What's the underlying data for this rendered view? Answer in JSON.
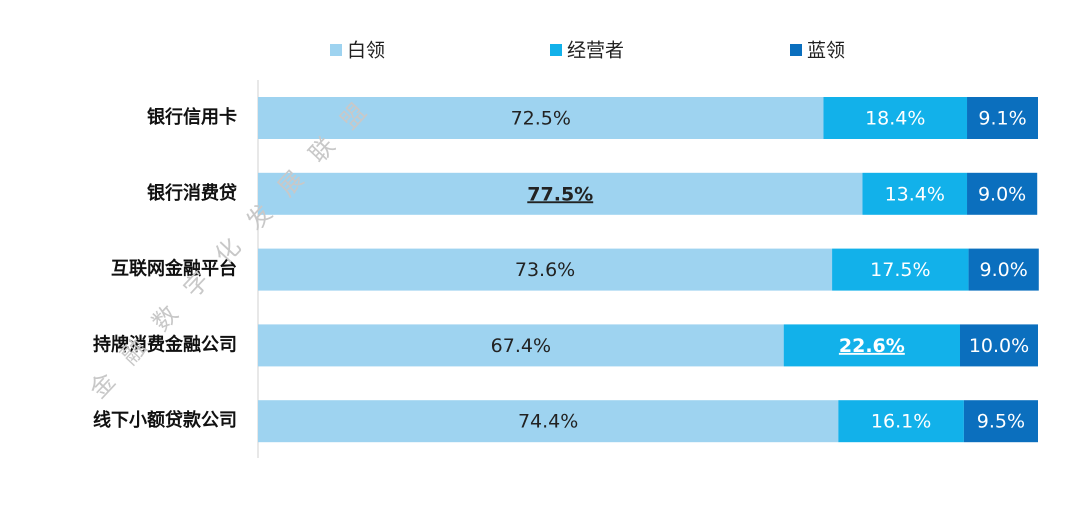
{
  "chart_data": {
    "type": "stacked_barh",
    "categories": [
      "银行信用卡",
      "银行消费贷",
      "互联网金融平台",
      "持牌消费金融公司",
      "线下小额贷款公司"
    ],
    "series": [
      {
        "name": "白领",
        "color": "#9ed3f0",
        "label_color": "#222222",
        "values": [
          72.5,
          77.5,
          73.6,
          67.4,
          74.4
        ],
        "value_labels": [
          "72.5%",
          "77.5%",
          "73.6%",
          "67.4%",
          "74.4%"
        ],
        "emphasis": [
          false,
          true,
          false,
          false,
          false
        ]
      },
      {
        "name": "经营者",
        "color": "#12b1ea",
        "label_color": "#ffffff",
        "values": [
          18.4,
          13.4,
          17.5,
          22.6,
          16.1
        ],
        "value_labels": [
          "18.4%",
          "13.4%",
          "17.5%",
          "22.6%",
          "16.1%"
        ],
        "emphasis": [
          false,
          false,
          false,
          true,
          false
        ]
      },
      {
        "name": "蓝领",
        "color": "#0b6fbe",
        "label_color": "#ffffff",
        "values": [
          9.1,
          9.0,
          9.0,
          10.0,
          9.5
        ],
        "value_labels": [
          "9.1%",
          "9.0%",
          "9.0%",
          "10.0%",
          "9.5%"
        ],
        "emphasis": [
          false,
          false,
          false,
          false,
          false
        ]
      }
    ],
    "xlim": [
      0,
      100
    ],
    "legend": "top",
    "watermark": "金融数字化发展联盟"
  }
}
